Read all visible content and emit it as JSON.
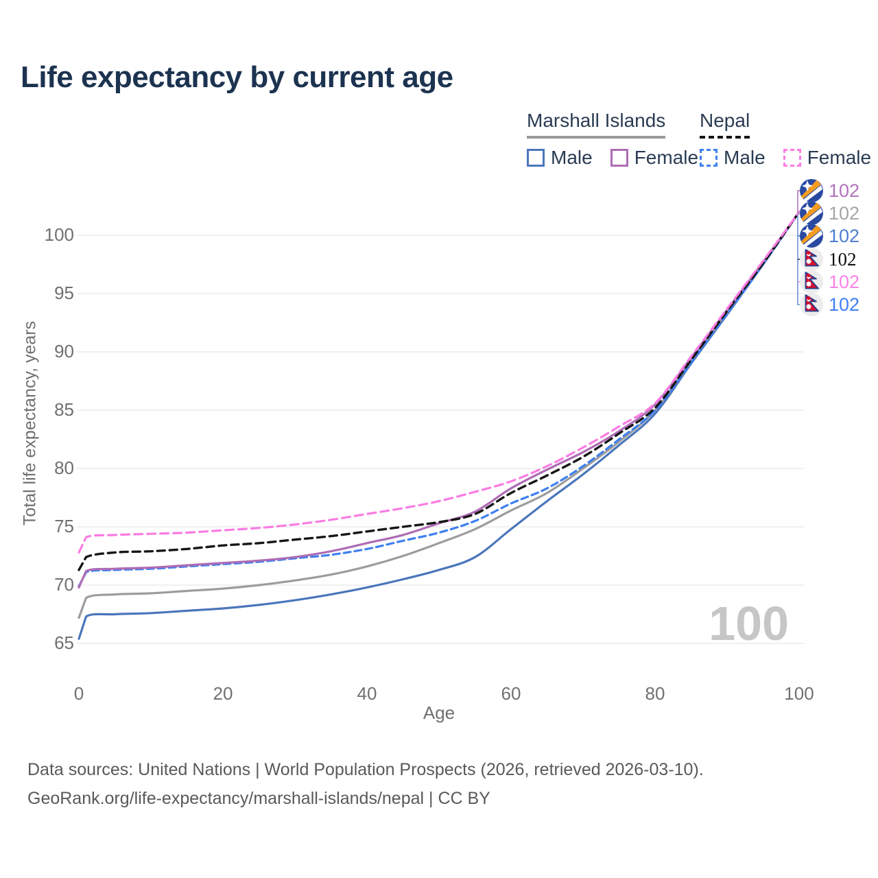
{
  "title": "Life expectancy by current age",
  "legend": {
    "groups": [
      {
        "name": "Marshall Islands",
        "underline": {
          "style": "solid",
          "color": "#999999"
        },
        "items": [
          {
            "label": "Male",
            "color": "#4a76bb",
            "dashed": false
          },
          {
            "label": "Female",
            "color": "#ae6cb4",
            "dashed": false
          }
        ]
      },
      {
        "name": "Nepal",
        "underline": {
          "style": "dashed",
          "color": "#141414"
        },
        "items": [
          {
            "label": "Male",
            "color": "#3e7ff0",
            "dashed": true
          },
          {
            "label": "Female",
            "color": "#fa7ce2",
            "dashed": true
          }
        ]
      }
    ]
  },
  "chart_data": {
    "type": "line",
    "title": "Life expectancy by current age",
    "xlabel": "Age",
    "ylabel": "Total life expectancy, years",
    "xlim": [
      0,
      100
    ],
    "ylim": [
      63.7,
      102.5
    ],
    "xticks": [
      0,
      20,
      40,
      60,
      80,
      100
    ],
    "yticks": [
      65,
      70,
      75,
      80,
      85,
      90,
      95,
      100
    ],
    "grid": "horizontal-only",
    "legend_position": "top-right",
    "watermark": "100",
    "x": [
      0,
      1,
      5,
      10,
      15,
      20,
      25,
      30,
      35,
      40,
      45,
      50,
      55,
      60,
      65,
      70,
      75,
      80,
      85,
      90,
      95,
      100
    ],
    "series": [
      {
        "name": "Marshall Islands Male",
        "color": "#4a76bb",
        "dash": false,
        "dasharray": "",
        "width": 3.2,
        "end_value_label": "102",
        "values": [
          65.4,
          67.3,
          67.5,
          67.6,
          67.8,
          68.0,
          68.3,
          68.7,
          69.2,
          69.8,
          70.5,
          71.3,
          72.4,
          74.8,
          77.2,
          79.5,
          82.0,
          84.7,
          89.0,
          93.2,
          97.5,
          102
        ]
      },
      {
        "name": "Marshall Islands All",
        "color": "#9c9c9c",
        "dash": false,
        "dasharray": "",
        "width": 3.2,
        "end_value_label": "102",
        "values": [
          67.2,
          68.9,
          69.2,
          69.3,
          69.5,
          69.7,
          70.0,
          70.4,
          70.9,
          71.6,
          72.5,
          73.6,
          74.8,
          76.4,
          77.9,
          80.0,
          82.3,
          85.0,
          89.2,
          93.4,
          97.6,
          102
        ]
      },
      {
        "name": "Nepal Male",
        "color": "#3e7ff0",
        "dash": true,
        "dasharray": "10 6",
        "width": 3.2,
        "end_value_label": "102",
        "values": [
          69.9,
          71.1,
          71.3,
          71.4,
          71.6,
          71.8,
          72.0,
          72.3,
          72.6,
          73.1,
          73.8,
          74.5,
          75.5,
          77.0,
          78.3,
          80.2,
          82.5,
          85.0,
          89.1,
          93.3,
          97.5,
          102
        ]
      },
      {
        "name": "Marshall Islands Female",
        "color": "#ae6cb4",
        "dash": false,
        "dasharray": "",
        "width": 3.2,
        "end_value_label": "102",
        "values": [
          69.8,
          71.2,
          71.4,
          71.5,
          71.7,
          71.9,
          72.1,
          72.4,
          72.9,
          73.6,
          74.3,
          75.3,
          76.3,
          78.3,
          79.9,
          81.4,
          83.2,
          85.5,
          89.5,
          93.6,
          97.7,
          102
        ]
      },
      {
        "name": "Nepal All",
        "color": "#161616",
        "dash": true,
        "dasharray": "11 7",
        "width": 3.4,
        "end_value_label": "102",
        "values": [
          71.3,
          72.4,
          72.8,
          72.9,
          73.1,
          73.4,
          73.6,
          73.9,
          74.2,
          74.6,
          75.0,
          75.4,
          76.1,
          77.9,
          79.4,
          81.0,
          83.0,
          85.2,
          89.3,
          93.5,
          97.6,
          102
        ]
      },
      {
        "name": "Nepal Female",
        "color": "#fa7ce2",
        "dash": true,
        "dasharray": "12 7",
        "width": 3.2,
        "end_value_label": "102",
        "values": [
          72.8,
          74.1,
          74.3,
          74.4,
          74.5,
          74.7,
          74.9,
          75.2,
          75.6,
          76.1,
          76.6,
          77.2,
          78.0,
          78.9,
          80.2,
          81.8,
          83.6,
          85.6,
          89.6,
          93.7,
          97.8,
          102
        ]
      }
    ]
  },
  "end_labels": [
    {
      "flag": "marshall-islands",
      "value": "102",
      "color": "#b273bd"
    },
    {
      "flag": "marshall-islands",
      "value": "102",
      "color": "#a6a6a6"
    },
    {
      "flag": "marshall-islands",
      "value": "102",
      "color": "#4d7ed0"
    },
    {
      "flag": "nepal",
      "value": "102",
      "color": "#111111"
    },
    {
      "flag": "nepal",
      "value": "102",
      "color": "#fb83e8"
    },
    {
      "flag": "nepal",
      "value": "102",
      "color": "#3f7ff5"
    }
  ],
  "footer": {
    "line1": "Data sources: United Nations | World Population Prospects (2026, retrieved 2026-03-10).",
    "line2": "GeoRank.org/life-expectancy/marshall-islands/nepal | CC BY"
  }
}
